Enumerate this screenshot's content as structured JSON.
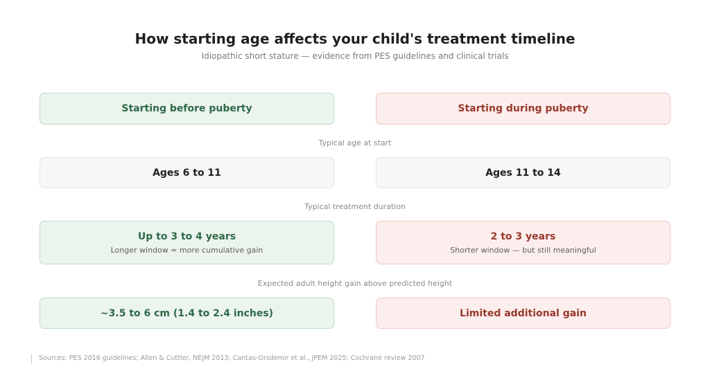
{
  "header": {
    "title": "How starting age affects your child's treatment timeline",
    "subtitle": "Idiopathic short stature — evidence from PES guidelines and clinical trials"
  },
  "columns": {
    "left": "Starting before puberty",
    "right": "Starting during puberty"
  },
  "rows": [
    {
      "label": "Typical age at start",
      "left": {
        "value": "Ages 6 to 11"
      },
      "right": {
        "value": "Ages 11 to 14"
      }
    },
    {
      "label": "Typical treatment duration",
      "left": {
        "value": "Up to 3 to 4 years",
        "note": "Longer window = more cumulative gain"
      },
      "right": {
        "value": "2 to 3 years",
        "note": "Shorter window — but still meaningful"
      }
    },
    {
      "label": "Expected adult height gain above predicted height",
      "left": {
        "value": "~3.5 to 6 cm (1.4 to 2.4 inches)"
      },
      "right": {
        "value": "Limited additional gain"
      }
    }
  ],
  "footer": {
    "sources": "Sources: PES 2016 guidelines; Allen & Cuttler, NEJM 2013; Cantas-Orsdemir et al., JPEM 2025; Cochrane review 2007"
  },
  "colors": {
    "before_puberty": "#2f6a48",
    "during_puberty": "#99392c",
    "before_puberty_fill": "#ecf4ee",
    "during_puberty_fill": "#fdeeee"
  }
}
